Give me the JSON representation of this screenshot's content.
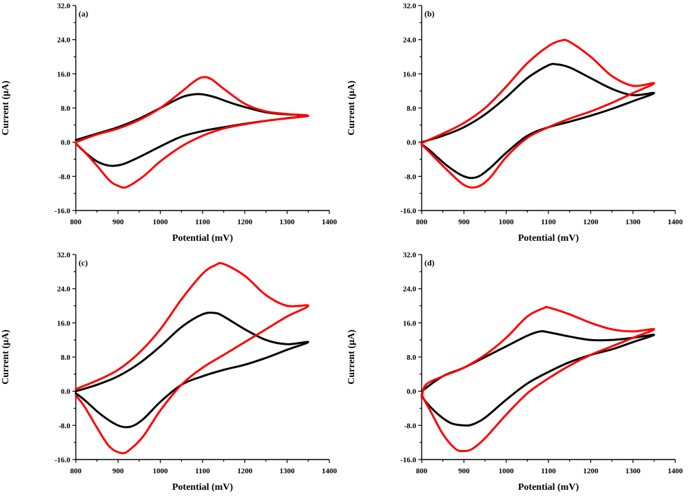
{
  "chart_data": [
    {
      "type": "line",
      "panel": "(a)",
      "xlabel": "Potential (mV)",
      "ylabel": "Current (µA)",
      "xlim": [
        800,
        1400
      ],
      "ylim": [
        -16,
        32
      ],
      "x_ticks": [
        "800",
        "900",
        "1000",
        "1100",
        "1200",
        "1300",
        "1400"
      ],
      "y_ticks": [
        "-16.0",
        "-8.0",
        "0.0",
        "8.0",
        "16.0",
        "24.0",
        "32.0"
      ],
      "series": [
        {
          "name": "black",
          "color": "#000000",
          "x": [
            800,
            850,
            900,
            950,
            1000,
            1050,
            1080,
            1100,
            1130,
            1180,
            1250,
            1300,
            1350,
            1300,
            1250,
            1200,
            1150,
            1100,
            1050,
            1000,
            950,
            910,
            880,
            850,
            820,
            800
          ],
          "y": [
            0.5,
            2,
            3.5,
            5.5,
            8,
            10.5,
            11.2,
            11.2,
            10.5,
            8.8,
            7,
            6.5,
            6.2,
            5.6,
            5,
            4.3,
            3.5,
            2.6,
            1.3,
            -1,
            -3.5,
            -5.2,
            -5.5,
            -4.5,
            -2.2,
            -0.3
          ]
        },
        {
          "name": "red",
          "color": "#ff0000",
          "x": [
            800,
            850,
            900,
            950,
            1000,
            1050,
            1080,
            1100,
            1120,
            1150,
            1200,
            1250,
            1300,
            1350,
            1300,
            1250,
            1200,
            1150,
            1100,
            1050,
            1000,
            960,
            920,
            900,
            880,
            850,
            820,
            800
          ],
          "y": [
            0,
            1.8,
            3.2,
            5.2,
            8,
            11.8,
            14.2,
            15.2,
            14.8,
            12.5,
            9,
            7.2,
            6.6,
            6.2,
            5.6,
            5,
            4.2,
            3.2,
            1.5,
            -1,
            -4.5,
            -8,
            -10.5,
            -10.2,
            -9,
            -5.5,
            -2.2,
            -0.3
          ]
        }
      ]
    },
    {
      "type": "line",
      "panel": "(b)",
      "xlabel": "Potential (mV)",
      "ylabel": "Current (µA)",
      "xlim": [
        800,
        1400
      ],
      "ylim": [
        -16,
        32
      ],
      "x_ticks": [
        "800",
        "900",
        "1000",
        "1100",
        "1200",
        "1300",
        "1400"
      ],
      "y_ticks": [
        "-16.0",
        "-8.0",
        "0.0",
        "8.0",
        "16.0",
        "24.0",
        "32.0"
      ],
      "series": [
        {
          "name": "black",
          "color": "#000000",
          "x": [
            800,
            850,
            900,
            950,
            1000,
            1050,
            1100,
            1120,
            1150,
            1200,
            1250,
            1300,
            1350,
            1300,
            1250,
            1200,
            1150,
            1100,
            1050,
            1000,
            960,
            930,
            900,
            860,
            820,
            800
          ],
          "y": [
            0,
            1.5,
            3.5,
            6.5,
            10.5,
            15,
            18,
            18.2,
            17.5,
            15,
            12.5,
            11,
            11.5,
            9.6,
            7.8,
            6.2,
            4.8,
            3.5,
            1.5,
            -2.5,
            -6.2,
            -8.2,
            -8,
            -5.5,
            -2,
            -0.5
          ]
        },
        {
          "name": "red",
          "color": "#ff0000",
          "x": [
            800,
            850,
            900,
            950,
            1000,
            1050,
            1100,
            1130,
            1150,
            1200,
            1250,
            1300,
            1350,
            1300,
            1250,
            1200,
            1150,
            1100,
            1050,
            1000,
            960,
            930,
            900,
            860,
            820,
            800
          ],
          "y": [
            -0.2,
            2,
            4.5,
            8,
            13,
            18.5,
            22.5,
            23.8,
            23.5,
            20,
            15.5,
            13.2,
            13.8,
            11.5,
            9.2,
            7.2,
            5.5,
            3.5,
            1,
            -3.5,
            -8.5,
            -10.5,
            -10,
            -6.5,
            -2.5,
            -0.5
          ]
        }
      ]
    },
    {
      "type": "line",
      "panel": "(c)",
      "xlabel": "Potential (mV)",
      "ylabel": "Current (µA)",
      "xlim": [
        800,
        1400
      ],
      "ylim": [
        -16,
        32
      ],
      "x_ticks": [
        "800",
        "900",
        "1000",
        "1100",
        "1200",
        "1300",
        "1400"
      ],
      "y_ticks": [
        "-16.0",
        "-8.0",
        "0.0",
        "8.0",
        "16.0",
        "24.0",
        "32.0"
      ],
      "series": [
        {
          "name": "black",
          "color": "#000000",
          "x": [
            800,
            850,
            900,
            950,
            1000,
            1050,
            1100,
            1130,
            1150,
            1200,
            1250,
            1300,
            1350,
            1300,
            1250,
            1200,
            1150,
            1100,
            1050,
            1000,
            960,
            930,
            900,
            860,
            820,
            800
          ],
          "y": [
            0,
            1.5,
            3.5,
            6.5,
            10.5,
            15,
            18,
            18.3,
            17.5,
            14.5,
            12,
            11,
            11.5,
            9.7,
            7.8,
            6.2,
            5,
            3.5,
            1.5,
            -2.5,
            -6.5,
            -8.3,
            -8,
            -5.5,
            -2,
            -0.5
          ]
        },
        {
          "name": "red",
          "color": "#ff0000",
          "x": [
            800,
            850,
            900,
            950,
            1000,
            1050,
            1100,
            1130,
            1150,
            1200,
            1250,
            1300,
            1350,
            1300,
            1250,
            1200,
            1150,
            1100,
            1050,
            1000,
            960,
            930,
            910,
            880,
            850,
            820,
            800
          ],
          "y": [
            0.5,
            2.5,
            5,
            9,
            14.5,
            21.5,
            27.5,
            29.5,
            29.8,
            27,
            22.5,
            20,
            20,
            17.5,
            14.5,
            11.5,
            8.5,
            5.5,
            1.5,
            -4.5,
            -10.5,
            -13.5,
            -14.5,
            -13,
            -8.5,
            -3.5,
            -1
          ]
        }
      ]
    },
    {
      "type": "line",
      "panel": "(d)",
      "xlabel": "Potential (mV)",
      "ylabel": "Current (µA)",
      "xlim": [
        800,
        1400
      ],
      "ylim": [
        -16,
        32
      ],
      "x_ticks": [
        "800",
        "900",
        "1000",
        "1100",
        "1200",
        "1300",
        "1400"
      ],
      "y_ticks": [
        "-16.0",
        "-8.0",
        "0.0",
        "8.0",
        "16.0",
        "24.0",
        "32.0"
      ],
      "series": [
        {
          "name": "black",
          "color": "#000000",
          "x": [
            800,
            850,
            900,
            950,
            1000,
            1050,
            1080,
            1100,
            1150,
            1200,
            1250,
            1300,
            1350,
            1300,
            1250,
            1200,
            1150,
            1100,
            1050,
            1000,
            950,
            920,
            900,
            870,
            840,
            810,
            800
          ],
          "y": [
            0,
            3.5,
            5.5,
            8,
            10.5,
            13,
            14,
            13.8,
            12.8,
            12,
            12,
            12.5,
            13.2,
            11.5,
            9.8,
            8.5,
            6.8,
            4.5,
            1.8,
            -2,
            -6.2,
            -7.8,
            -8,
            -7.5,
            -5.5,
            -2.5,
            -0.8
          ]
        },
        {
          "name": "red",
          "color": "#ff0000",
          "x": [
            800,
            810,
            850,
            900,
            950,
            1000,
            1050,
            1090,
            1100,
            1150,
            1200,
            1250,
            1300,
            1350,
            1300,
            1250,
            1200,
            1150,
            1100,
            1050,
            1000,
            950,
            920,
            900,
            880,
            850,
            820,
            800
          ],
          "y": [
            -1.5,
            1.5,
            3.5,
            5.5,
            8.5,
            12.5,
            17.5,
            19.5,
            19.6,
            18,
            16,
            14.5,
            14,
            14.5,
            12.5,
            10.5,
            8.5,
            6,
            3,
            -0.5,
            -5.5,
            -11,
            -13.5,
            -14,
            -13.5,
            -10,
            -4.5,
            -1
          ]
        }
      ]
    }
  ]
}
